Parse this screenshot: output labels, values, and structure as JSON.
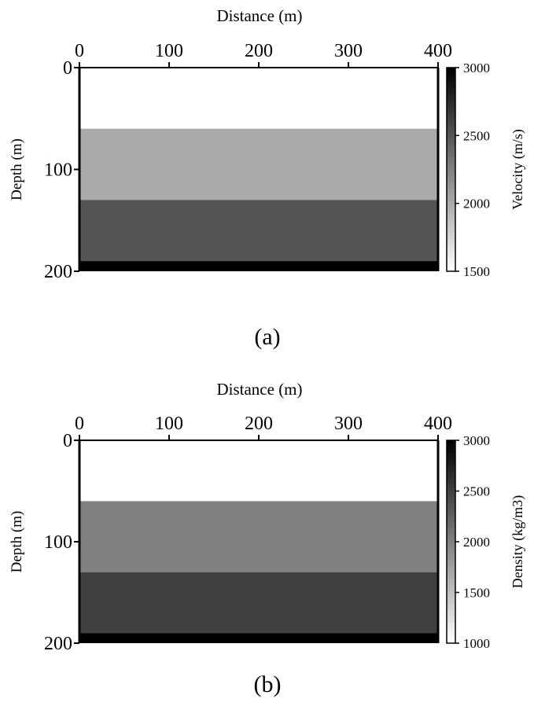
{
  "chart_data": [
    {
      "type": "heatmap",
      "panel_label": "(a)",
      "xlabel": "Distance (m)",
      "ylabel": "Depth (m)",
      "xlim": [
        0,
        400
      ],
      "ylim": [
        0,
        200
      ],
      "xticks": [
        "0",
        "100",
        "200",
        "300",
        "400"
      ],
      "yticks": [
        "0",
        "100",
        "200"
      ],
      "colorbar": {
        "label": "Velocity (m/s)",
        "range": [
          1500,
          3000
        ],
        "ticks": [
          "1500",
          "2000",
          "2500",
          "3000"
        ],
        "colors": [
          "#ffffff",
          "#000000"
        ]
      },
      "layers": [
        {
          "top": 0,
          "bottom": 60,
          "value": 1500
        },
        {
          "top": 60,
          "bottom": 130,
          "value": 2000
        },
        {
          "top": 130,
          "bottom": 190,
          "value": 2500
        },
        {
          "top": 190,
          "bottom": 200,
          "value": 3000
        }
      ]
    },
    {
      "type": "heatmap",
      "panel_label": "(b)",
      "xlabel": "Distance (m)",
      "ylabel": "Depth (m)",
      "xlim": [
        0,
        400
      ],
      "ylim": [
        0,
        200
      ],
      "xticks": [
        "0",
        "100",
        "200",
        "300",
        "400"
      ],
      "yticks": [
        "0",
        "100",
        "200"
      ],
      "colorbar": {
        "label": "Density (kg/m3)",
        "range": [
          1000,
          3000
        ],
        "ticks": [
          "1000",
          "1500",
          "2000",
          "2500",
          "3000"
        ],
        "colors": [
          "#ffffff",
          "#000000"
        ]
      },
      "layers": [
        {
          "top": 0,
          "bottom": 60,
          "value": 1000
        },
        {
          "top": 60,
          "bottom": 130,
          "value": 2000
        },
        {
          "top": 130,
          "bottom": 190,
          "value": 2500
        },
        {
          "top": 190,
          "bottom": 200,
          "value": 3000
        }
      ]
    }
  ]
}
